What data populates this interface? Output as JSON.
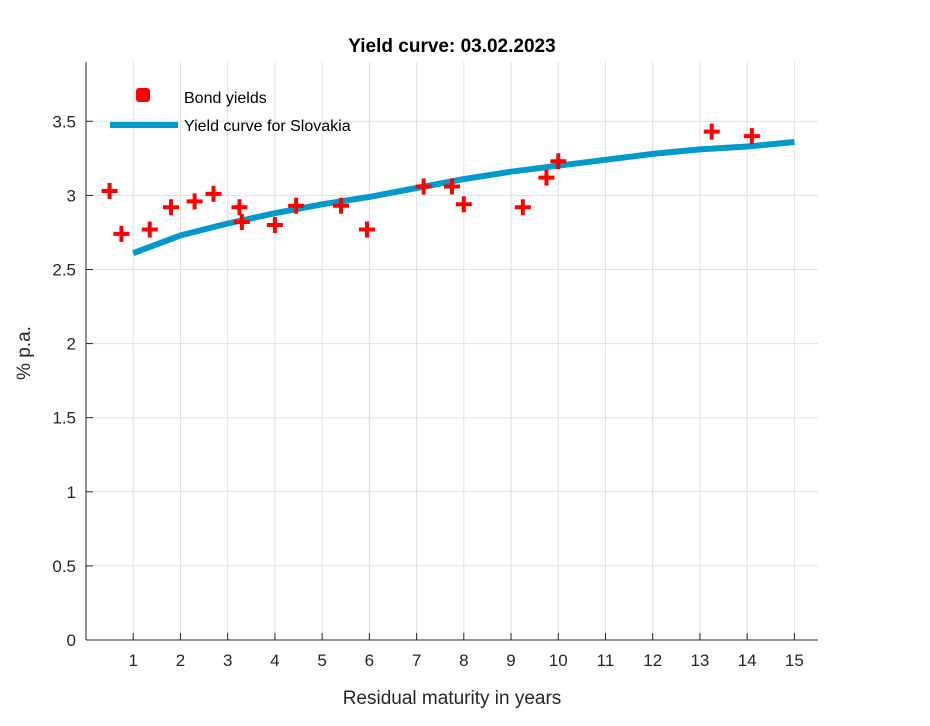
{
  "chart_data": {
    "type": "scatter",
    "title": "Yield curve: 03.02.2023",
    "xlabel": "Residual maturity in years",
    "ylabel": "% p.a.",
    "xlim": [
      0,
      15.5
    ],
    "ylim": [
      0,
      3.9
    ],
    "xticks": [
      1,
      2,
      3,
      4,
      5,
      6,
      7,
      8,
      9,
      10,
      11,
      12,
      13,
      14,
      15
    ],
    "yticks": [
      0,
      0.5,
      1,
      1.5,
      2,
      2.5,
      3,
      3.5
    ],
    "xtick_labels": [
      "1",
      "2",
      "3",
      "4",
      "5",
      "6",
      "7",
      "8",
      "9",
      "10",
      "11",
      "12",
      "13",
      "14",
      "15"
    ],
    "ytick_labels": [
      "0",
      "0.5",
      "1",
      "1.5",
      "2",
      "2.5",
      "3",
      "3.5"
    ],
    "grid": true,
    "legend_position": "top-left",
    "colors": {
      "markers": "#ff0000",
      "curve": "#0099cc",
      "grid": "#e0e0e0",
      "axis": "#262626"
    },
    "series": [
      {
        "name": "Bond yields",
        "kind": "markers",
        "x": [
          0.5,
          0.75,
          1.35,
          1.8,
          2.3,
          2.7,
          3.25,
          3.3,
          4.0,
          4.45,
          5.4,
          5.95,
          7.15,
          7.75,
          8.0,
          9.25,
          9.75,
          10.0,
          13.25,
          14.1
        ],
        "y": [
          3.03,
          2.74,
          2.77,
          2.92,
          2.96,
          3.01,
          2.92,
          2.82,
          2.8,
          2.93,
          2.93,
          2.77,
          3.06,
          3.06,
          2.94,
          2.92,
          3.12,
          3.23,
          3.43,
          3.4
        ]
      },
      {
        "name": "Yield curve for Slovakia",
        "kind": "line",
        "x": [
          1,
          2,
          3,
          4,
          5,
          6,
          7,
          8,
          9,
          10,
          11,
          12,
          13,
          14,
          15
        ],
        "y": [
          2.61,
          2.73,
          2.81,
          2.88,
          2.94,
          2.99,
          3.05,
          3.11,
          3.16,
          3.2,
          3.24,
          3.28,
          3.31,
          3.33,
          3.36
        ]
      }
    ]
  }
}
